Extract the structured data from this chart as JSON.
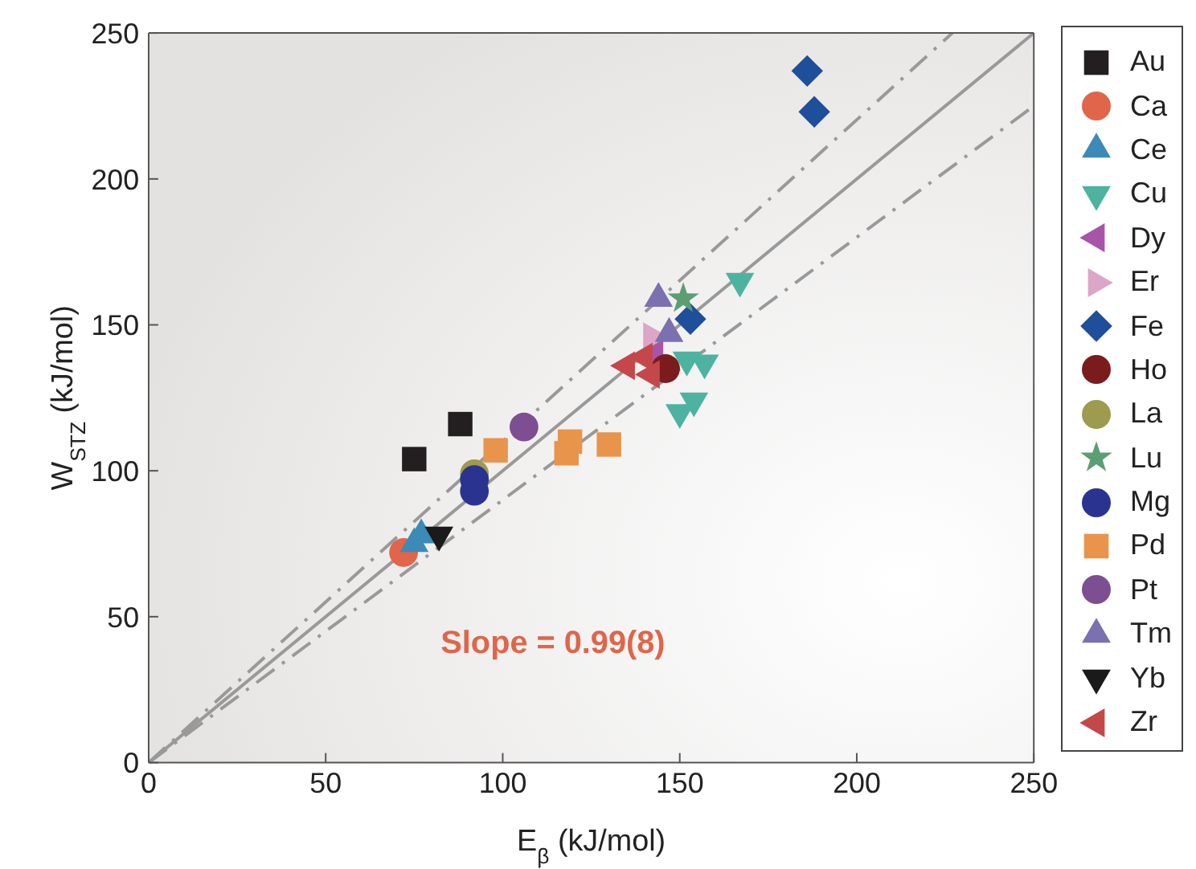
{
  "chart_data": {
    "type": "scatter",
    "xlabel": "E$_{β}$ (kJ/mol)",
    "ylabel": "W$_{STZ}$ (kJ/mol)",
    "xlim": [
      0,
      250
    ],
    "ylim": [
      0,
      250
    ],
    "xticks": [
      0,
      50,
      100,
      150,
      200,
      250
    ],
    "yticks": [
      0,
      50,
      100,
      150,
      200,
      250
    ],
    "legend": "right",
    "annotations": [
      "Slope = 0.99(8)"
    ],
    "series": [
      {
        "type": "line",
        "color": "#999999",
        "line_style": "solid",
        "marker": "none",
        "x": [
          0,
          250
        ],
        "values": [
          0,
          250
        ]
      },
      {
        "type": "line",
        "color": "#999999",
        "line_style": "dashed",
        "marker": "none",
        "x": [
          0,
          227
        ],
        "values": [
          0,
          250
        ]
      },
      {
        "type": "line",
        "color": "#999999",
        "line_style": "dashed",
        "marker": "none",
        "x": [
          0,
          250
        ],
        "values": [
          0,
          225
        ]
      },
      {
        "name": "Au",
        "color": "#231f20",
        "marker": "square",
        "x": [
          75,
          88
        ],
        "values": [
          104,
          116
        ]
      },
      {
        "name": "Ca",
        "color": "#e0654a",
        "marker": "circle",
        "x": [
          72
        ],
        "values": [
          72
        ]
      },
      {
        "name": "Ce",
        "color": "#3b8ab8",
        "marker": "triangle",
        "x": [
          75,
          77
        ],
        "values": [
          75,
          78
        ]
      },
      {
        "name": "Cu",
        "color": "#4db3a0",
        "marker": "triangle-down",
        "x": [
          167,
          157,
          152,
          154,
          150
        ],
        "values": [
          165,
          137,
          138,
          124,
          120
        ]
      },
      {
        "name": "Dy",
        "color": "#a855a8",
        "marker": "triangle-left",
        "x": [
          143
        ],
        "values": [
          140
        ]
      },
      {
        "name": "Er",
        "color": "#dca6c8",
        "marker": "triangle-right",
        "x": [
          142
        ],
        "values": [
          146
        ]
      },
      {
        "name": "Fe",
        "color": "#1f4e9a",
        "marker": "diamond",
        "x": [
          186,
          188,
          153
        ],
        "values": [
          237,
          223,
          152
        ]
      },
      {
        "name": "Ho",
        "color": "#7a1c1e",
        "x": [
          146
        ],
        "values": [
          135
        ]
      },
      {
        "name": "La",
        "color": "#9e9a4e",
        "x": [
          92
        ],
        "values": [
          99
        ]
      },
      {
        "name": "Lu",
        "color": "#5a9e72",
        "marker": "star",
        "x": [
          151
        ],
        "values": [
          159
        ]
      },
      {
        "name": "Mg",
        "color": "#2a3490",
        "marker": "circle",
        "x": [
          92,
          92
        ],
        "values": [
          97,
          93
        ]
      },
      {
        "name": "Pd",
        "color": "#e8944a",
        "marker": "square",
        "x": [
          98,
          118,
          119,
          130
        ],
        "values": [
          107,
          106,
          110,
          109
        ]
      },
      {
        "name": "Pt",
        "color": "#7e4e92",
        "marker": "circle",
        "x": [
          106
        ],
        "values": [
          115
        ]
      },
      {
        "name": "Tm",
        "color": "#7b70b0",
        "marker": "triangle",
        "x": [
          144,
          147
        ],
        "values": [
          159,
          147
        ]
      },
      {
        "name": "Yb",
        "color": "#1a1a1a",
        "marker": "triangle-down",
        "x": [
          82
        ],
        "values": [
          78
        ]
      },
      {
        "name": "Zr",
        "color": "#c4484a",
        "marker": "triangle-left",
        "x": [
          135,
          140,
          142
        ],
        "values": [
          136,
          139,
          133
        ]
      }
    ]
  }
}
